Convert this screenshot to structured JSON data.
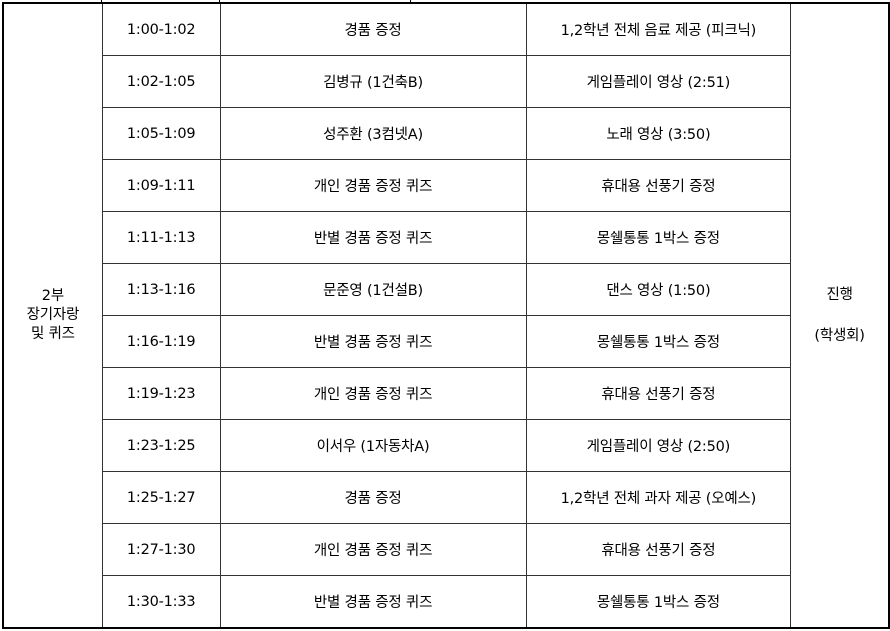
{
  "section": {
    "line1": "2부",
    "line2": "장기자랑",
    "line3": "및 퀴즈"
  },
  "host": {
    "line1": "진행",
    "line2": "(학생회)"
  },
  "rows": [
    {
      "time": "1:00-1:02",
      "item": "경품 증정",
      "detail": "1,2학년 전체 음료 제공 (피크닉)"
    },
    {
      "time": "1:02-1:05",
      "item": "김병규 (1건축B)",
      "detail": "게임플레이 영상 (2:51)"
    },
    {
      "time": "1:05-1:09",
      "item": "성주환 (3컴넷A)",
      "detail": "노래 영상 (3:50)"
    },
    {
      "time": "1:09-1:11",
      "item": "개인 경품 증정 퀴즈",
      "detail": "휴대용 선풍기 증정"
    },
    {
      "time": "1:11-1:13",
      "item": "반별 경품 증정 퀴즈",
      "detail": "몽쉘통통 1박스 증정"
    },
    {
      "time": "1:13-1:16",
      "item": "문준영 (1건설B)",
      "detail": "댄스 영상 (1:50)"
    },
    {
      "time": "1:16-1:19",
      "item": "반별 경품 증정 퀴즈",
      "detail": "몽쉘통통 1박스 증정"
    },
    {
      "time": "1:19-1:23",
      "item": "개인 경품 증정 퀴즈",
      "detail": "휴대용 선풍기 증정"
    },
    {
      "time": "1:23-1:25",
      "item": "이서우 (1자동차A)",
      "detail": "게임플레이 영상 (2:50)"
    },
    {
      "time": "1:25-1:27",
      "item": "경품 증정",
      "detail": "1,2학년 전체 과자 제공 (오예스)"
    },
    {
      "time": "1:27-1:30",
      "item": "개인 경품 증정 퀴즈",
      "detail": "휴대용 선풍기 증정"
    },
    {
      "time": "1:30-1:33",
      "item": "반별 경품 증정 퀴즈",
      "detail": "몽쉘통통 1박스 증정"
    }
  ]
}
